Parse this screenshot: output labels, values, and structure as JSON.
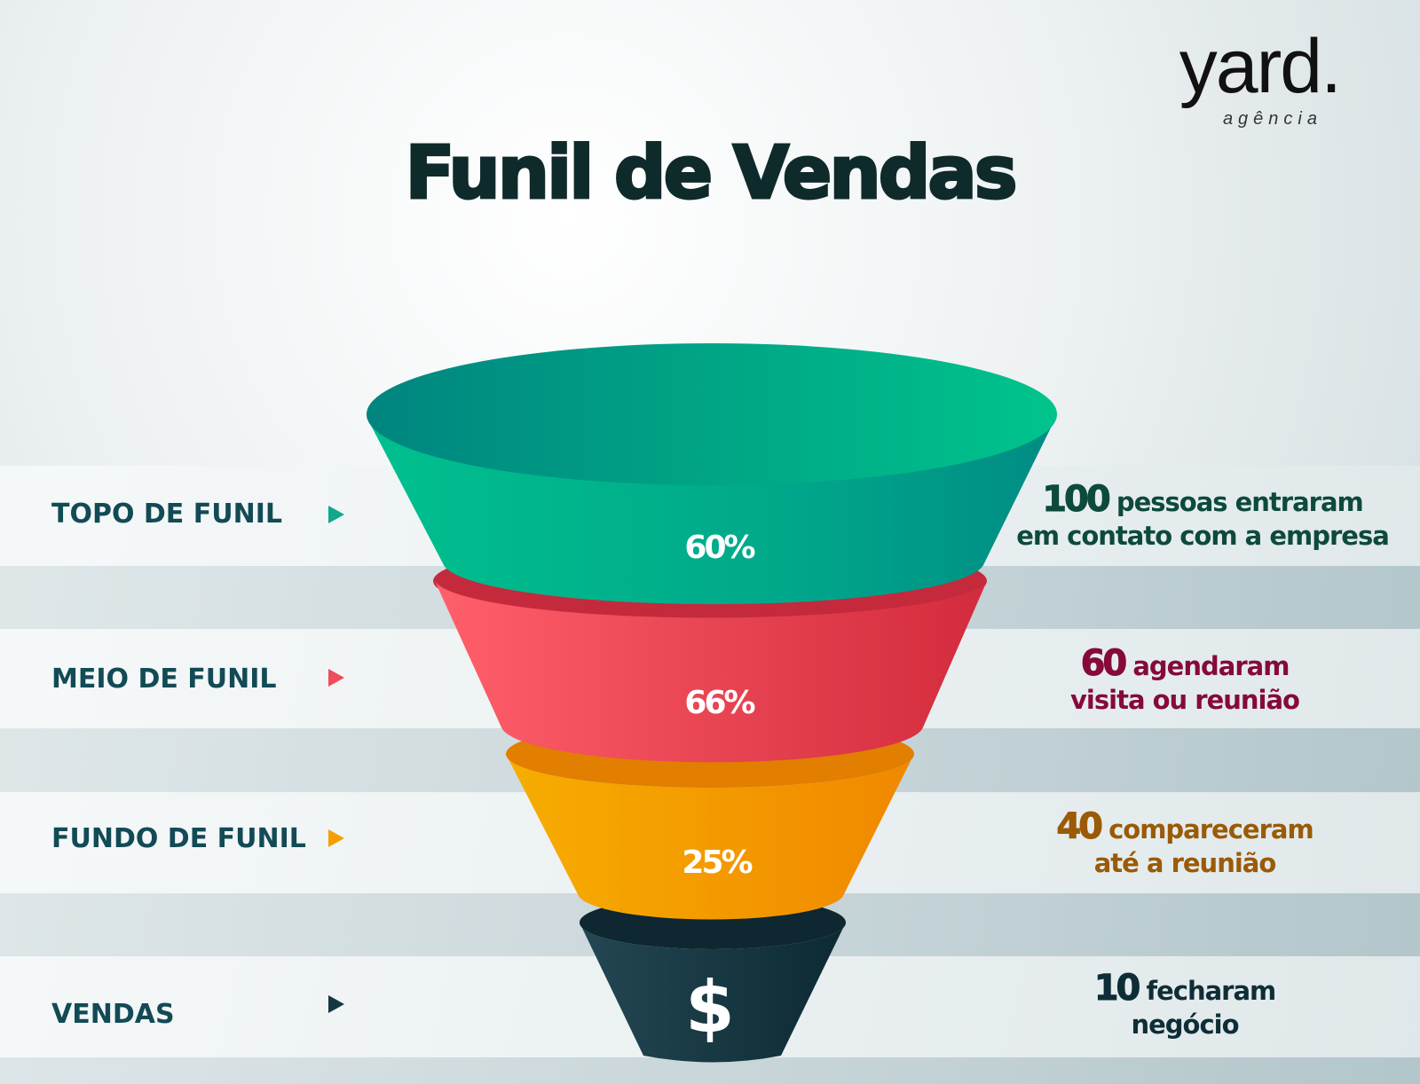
{
  "title": "Funil de Vendas",
  "logo": {
    "name": "yard.",
    "tagline": "agência"
  },
  "colors": {
    "green": "#00b98a",
    "red": "#f2545b",
    "orange": "#f59c00",
    "dark": "#173641",
    "label": "#124a55"
  },
  "stages": [
    {
      "label": "TOPO DE FUNIL",
      "percent": "60%",
      "number": "100",
      "line1": " pessoas entraram",
      "line2": "em contato com a empresa",
      "text_color": "#0d4a3c",
      "arrow_color": "#10a88a"
    },
    {
      "label": "MEIO DE FUNIL",
      "percent": "66%",
      "number": "60",
      "line1": " agendaram",
      "line2": "visita ou reunião",
      "text_color": "#850a3a",
      "arrow_color": "#ef4c5c"
    },
    {
      "label": "FUNDO DE FUNIL",
      "percent": "25%",
      "number": "40",
      "line1": " compareceram",
      "line2": "até a reunião",
      "text_color": "#9a5a06",
      "arrow_color": "#f5a000"
    },
    {
      "label": "VENDAS",
      "percent": "$",
      "number": "10",
      "line1": " fecharam",
      "line2": "negócio",
      "text_color": "#0f2d36",
      "arrow_color": "#173641"
    }
  ]
}
